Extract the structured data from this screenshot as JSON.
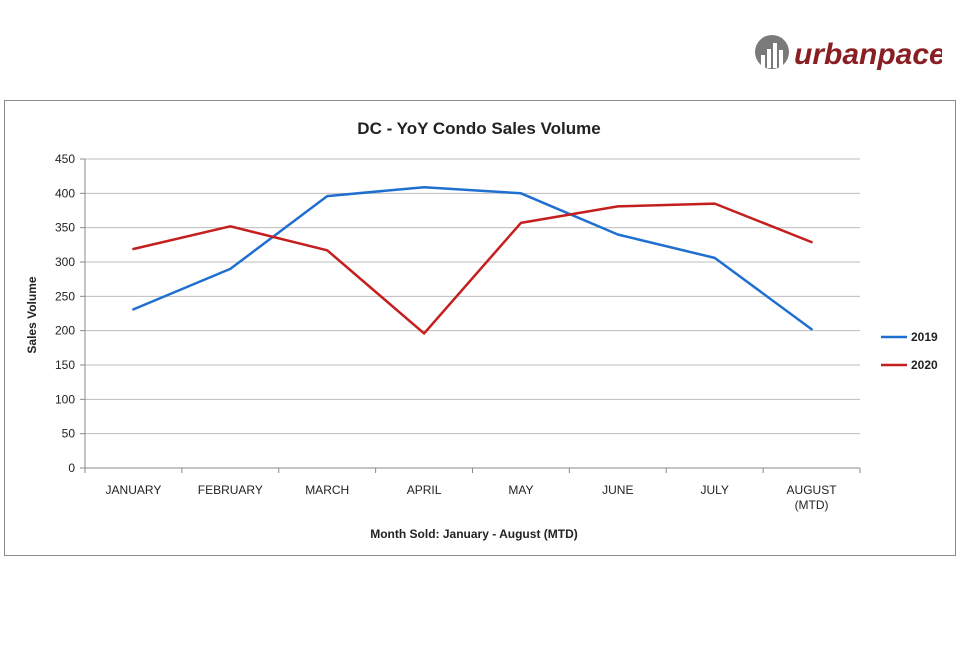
{
  "logo": {
    "text": "urbanpace",
    "brand_color": "#8a1f23",
    "mark_color": "#6f6f6f"
  },
  "chart_data": {
    "type": "line",
    "title": "DC - YoY Condo Sales Volume",
    "xlabel": "Month Sold: January - August (MTD)",
    "ylabel": "Sales Volume",
    "categories": [
      "JANUARY",
      "FEBRUARY",
      "MARCH",
      "APRIL",
      "MAY",
      "JUNE",
      "JULY",
      "AUGUST|(MTD)"
    ],
    "ylim": [
      0,
      450
    ],
    "yticks": [
      0,
      50,
      100,
      150,
      200,
      250,
      300,
      350,
      400,
      450
    ],
    "grid": true,
    "legend_position": "right",
    "series": [
      {
        "name": "2019",
        "color": "#1f6fd1",
        "values": [
          231,
          290,
          396,
          409,
          400,
          340,
          306,
          202
        ]
      },
      {
        "name": "2020",
        "color": "#c51e1e",
        "values": [
          319,
          352,
          317,
          196,
          357,
          381,
          385,
          329
        ]
      }
    ]
  }
}
